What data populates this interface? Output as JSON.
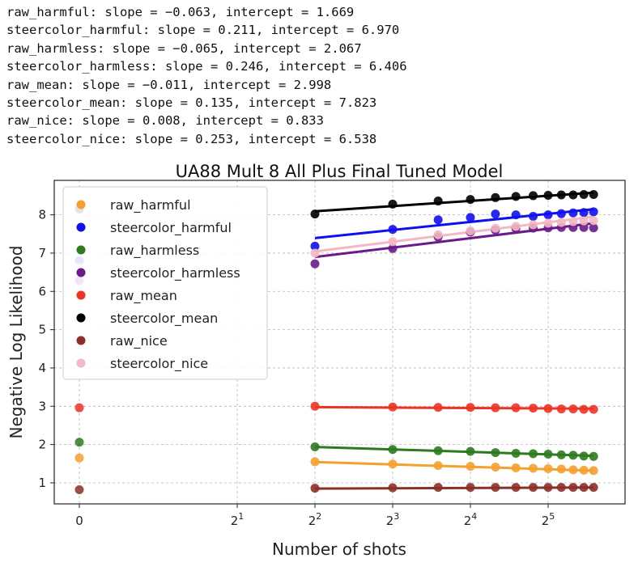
{
  "console": {
    "lines": [
      "raw_harmful: slope = −0.063, intercept = 1.669",
      "steercolor_harmful: slope = 0.211, intercept = 6.970",
      "raw_harmless: slope = −0.065, intercept = 2.067",
      "steercolor_harmless: slope = 0.246, intercept = 6.406",
      "raw_mean: slope = −0.011, intercept = 2.998",
      "steercolor_mean: slope = 0.135, intercept = 7.823",
      "raw_nice: slope = 0.008, intercept = 0.833",
      "steercolor_nice: slope = 0.253, intercept = 6.538"
    ]
  },
  "chart_data": {
    "type": "scatter",
    "title": "UA88 Mult 8 All Plus Final Tuned Model",
    "xlabel": "Number of shots",
    "ylabel": "Negative Log Likelihood",
    "x_scale": "symlog base 2",
    "x_ticks": [
      {
        "value": 0,
        "base": "0",
        "exp": ""
      },
      {
        "value": 2,
        "base": "2",
        "exp": "1"
      },
      {
        "value": 4,
        "base": "2",
        "exp": "2"
      },
      {
        "value": 8,
        "base": "2",
        "exp": "3"
      },
      {
        "value": 16,
        "base": "2",
        "exp": "4"
      },
      {
        "value": 32,
        "base": "2",
        "exp": "5"
      }
    ],
    "y_ticks": [
      1,
      2,
      3,
      4,
      5,
      6,
      7,
      8
    ],
    "ylim": [
      0.45,
      8.9
    ],
    "grid": true,
    "legend_position": "upper-left",
    "x": [
      0,
      4,
      8,
      12,
      16,
      20,
      24,
      28,
      32,
      36,
      40,
      44,
      48
    ],
    "series": [
      {
        "name": "raw_harmful",
        "color": "#f5a030",
        "values": [
          1.65,
          1.55,
          1.49,
          1.45,
          1.43,
          1.41,
          1.39,
          1.38,
          1.37,
          1.36,
          1.34,
          1.33,
          1.32
        ],
        "slope": -0.063,
        "intercept": 1.669
      },
      {
        "name": "steercolor_harmful",
        "color": "#1010ee",
        "values": [
          6.8,
          7.18,
          7.62,
          7.87,
          7.93,
          8.02,
          8.0,
          7.96,
          8.0,
          8.03,
          8.05,
          8.06,
          8.08
        ],
        "slope": 0.211,
        "intercept": 6.97
      },
      {
        "name": "raw_harmless",
        "color": "#2e7a1f",
        "values": [
          2.06,
          1.94,
          1.87,
          1.84,
          1.82,
          1.79,
          1.77,
          1.76,
          1.75,
          1.73,
          1.72,
          1.7,
          1.69
        ],
        "slope": -0.065,
        "intercept": 2.067
      },
      {
        "name": "steercolor_harmless",
        "color": "#6a1b8a",
        "values": [
          6.28,
          6.72,
          7.12,
          7.42,
          7.55,
          7.6,
          7.64,
          7.65,
          7.66,
          7.67,
          7.67,
          7.67,
          7.66
        ],
        "slope": 0.246,
        "intercept": 6.406
      },
      {
        "name": "raw_mean",
        "color": "#ee3322",
        "values": [
          2.96,
          3.0,
          2.98,
          2.97,
          2.97,
          2.96,
          2.96,
          2.95,
          2.94,
          2.93,
          2.93,
          2.92,
          2.92
        ],
        "slope": -0.011,
        "intercept": 2.998
      },
      {
        "name": "steercolor_mean",
        "color": "#000000",
        "values": [
          8.15,
          8.02,
          8.28,
          8.36,
          8.4,
          8.45,
          8.48,
          8.5,
          8.51,
          8.52,
          8.52,
          8.53,
          8.53
        ],
        "slope": 0.135,
        "intercept": 7.823
      },
      {
        "name": "raw_nice",
        "color": "#8b3028",
        "values": [
          0.82,
          0.86,
          0.87,
          0.88,
          0.88,
          0.88,
          0.88,
          0.88,
          0.88,
          0.88,
          0.88,
          0.88,
          0.88
        ],
        "slope": 0.008,
        "intercept": 0.833
      },
      {
        "name": "steercolor_nice",
        "color": "#f4b8c4",
        "values": [
          6.62,
          7.0,
          7.3,
          7.48,
          7.58,
          7.65,
          7.7,
          7.74,
          7.78,
          7.8,
          7.82,
          7.84,
          7.85
        ],
        "slope": 0.253,
        "intercept": 6.538
      }
    ]
  }
}
